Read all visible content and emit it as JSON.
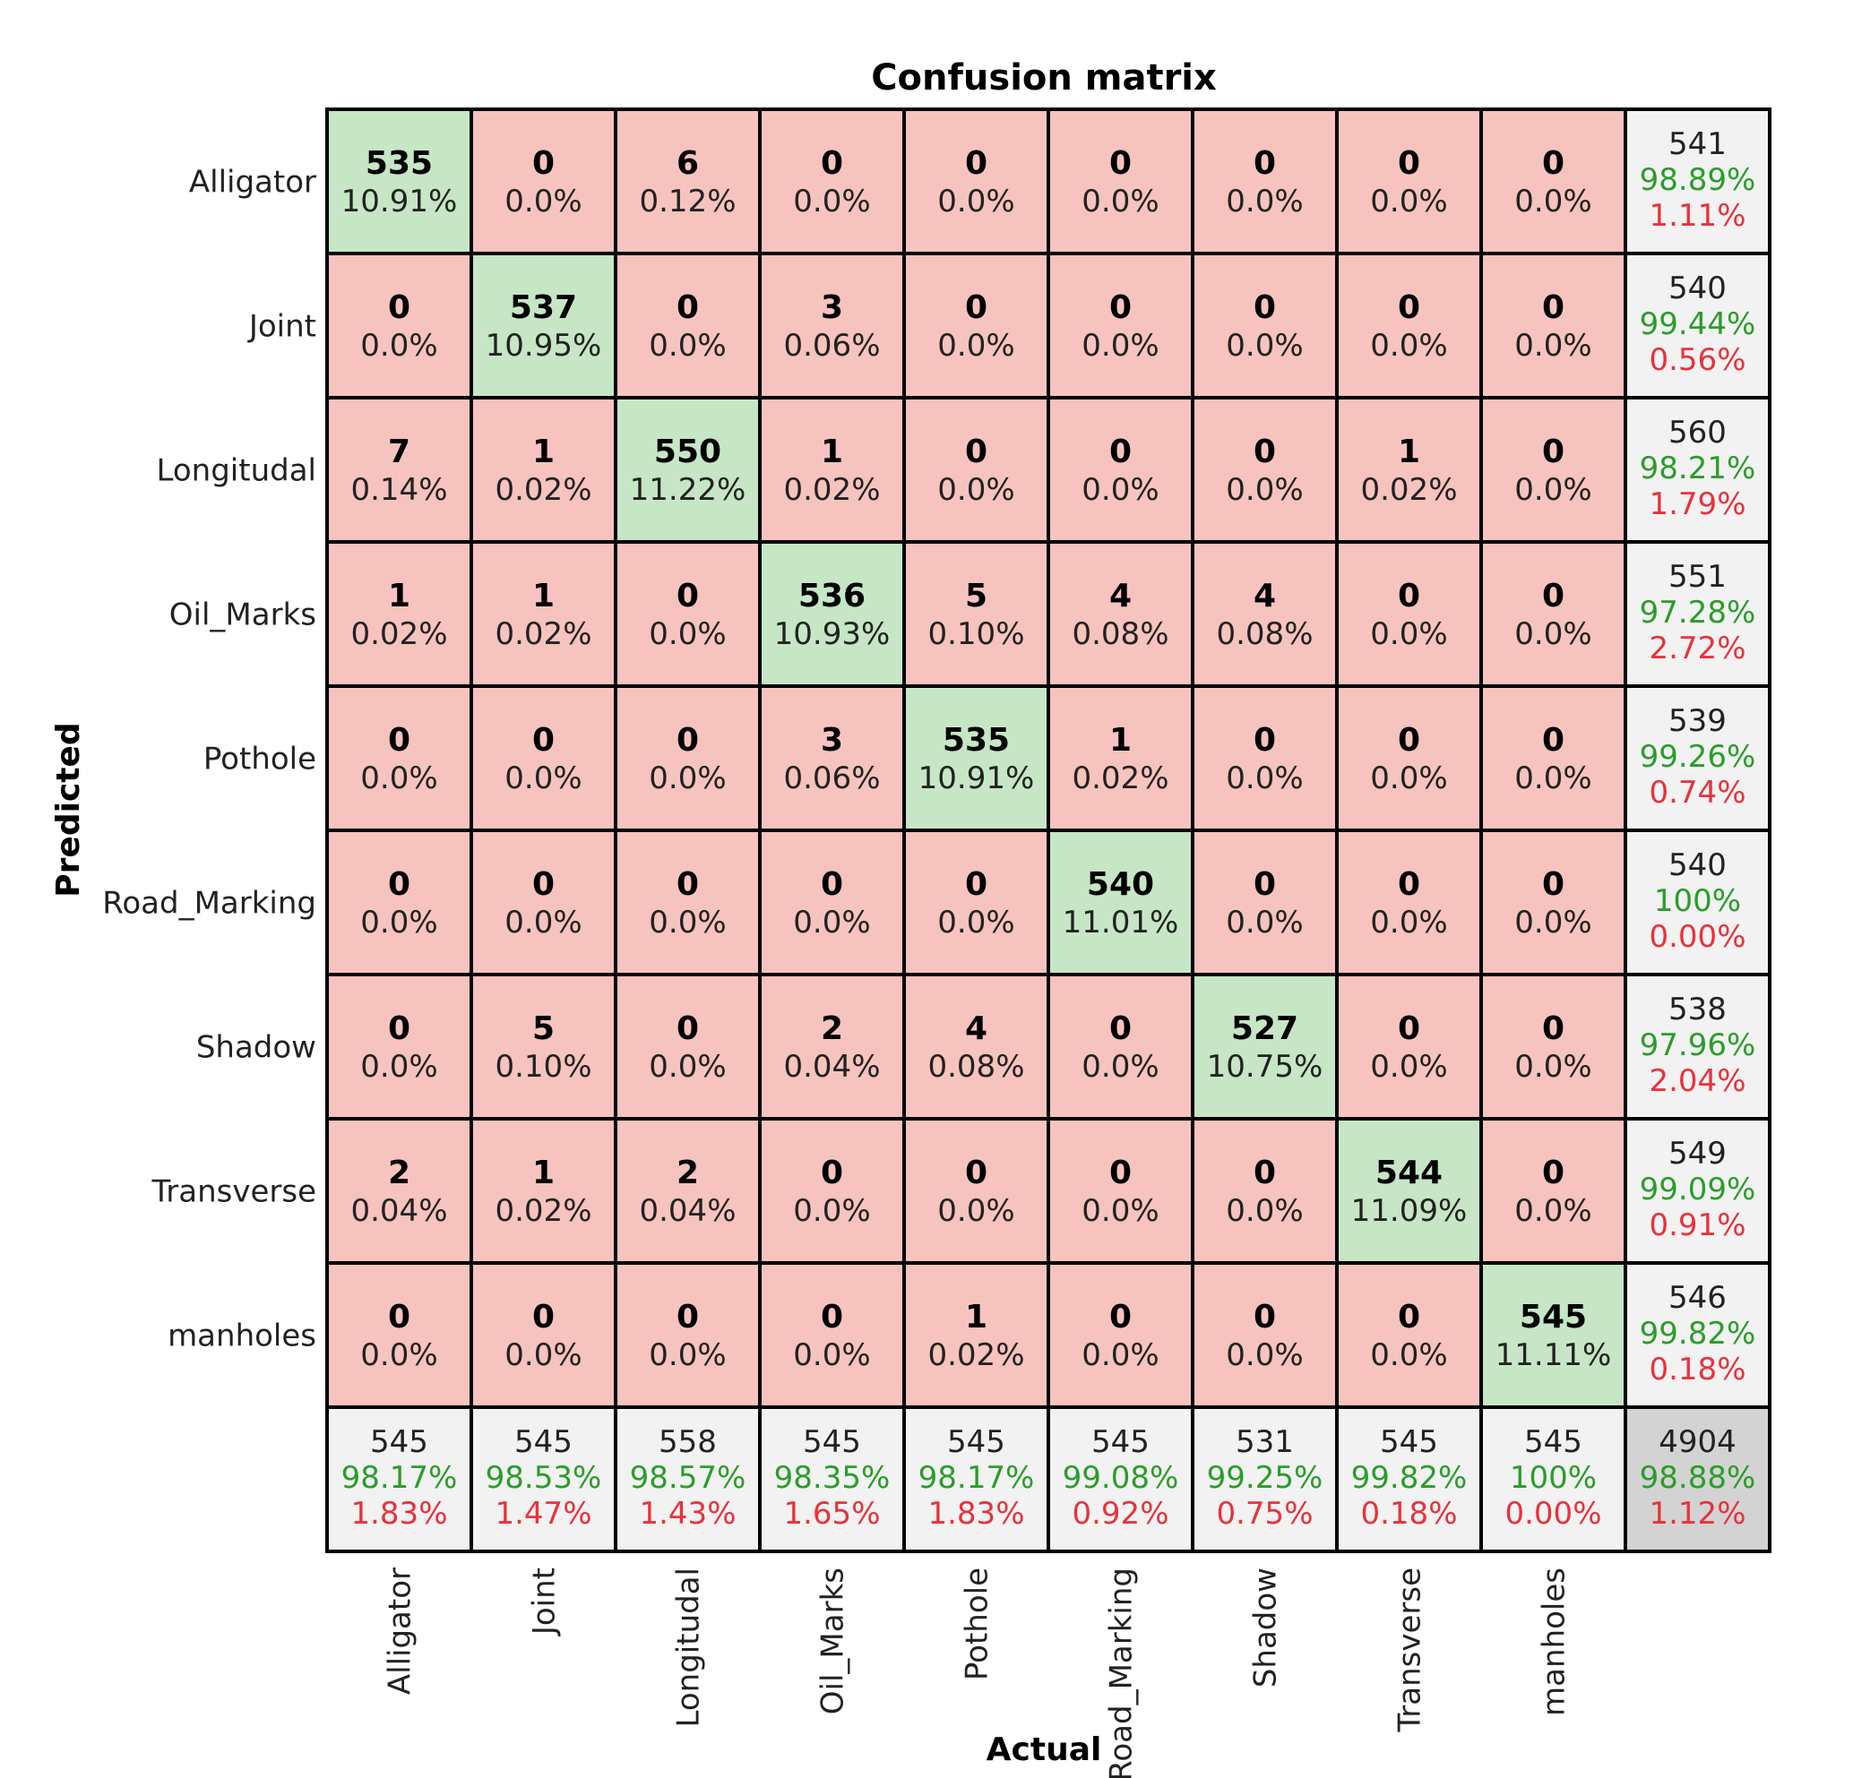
{
  "chart_data": {
    "type": "heatmap",
    "title": "Confusion matrix",
    "xlabel": "Actual",
    "ylabel": "Predicted",
    "labels": [
      "Alligator",
      "Joint",
      "Longitudal",
      "Oil_Marks",
      "Pothole",
      "Road_Marking",
      "Shadow",
      "Transverse",
      "manholes"
    ],
    "cells": [
      [
        {
          "count": "535",
          "pct": "10.91%"
        },
        {
          "count": "0",
          "pct": "0.0%"
        },
        {
          "count": "6",
          "pct": "0.12%"
        },
        {
          "count": "0",
          "pct": "0.0%"
        },
        {
          "count": "0",
          "pct": "0.0%"
        },
        {
          "count": "0",
          "pct": "0.0%"
        },
        {
          "count": "0",
          "pct": "0.0%"
        },
        {
          "count": "0",
          "pct": "0.0%"
        },
        {
          "count": "0",
          "pct": "0.0%"
        }
      ],
      [
        {
          "count": "0",
          "pct": "0.0%"
        },
        {
          "count": "537",
          "pct": "10.95%"
        },
        {
          "count": "0",
          "pct": "0.0%"
        },
        {
          "count": "3",
          "pct": "0.06%"
        },
        {
          "count": "0",
          "pct": "0.0%"
        },
        {
          "count": "0",
          "pct": "0.0%"
        },
        {
          "count": "0",
          "pct": "0.0%"
        },
        {
          "count": "0",
          "pct": "0.0%"
        },
        {
          "count": "0",
          "pct": "0.0%"
        }
      ],
      [
        {
          "count": "7",
          "pct": "0.14%"
        },
        {
          "count": "1",
          "pct": "0.02%"
        },
        {
          "count": "550",
          "pct": "11.22%"
        },
        {
          "count": "1",
          "pct": "0.02%"
        },
        {
          "count": "0",
          "pct": "0.0%"
        },
        {
          "count": "0",
          "pct": "0.0%"
        },
        {
          "count": "0",
          "pct": "0.0%"
        },
        {
          "count": "1",
          "pct": "0.02%"
        },
        {
          "count": "0",
          "pct": "0.0%"
        }
      ],
      [
        {
          "count": "1",
          "pct": "0.02%"
        },
        {
          "count": "1",
          "pct": "0.02%"
        },
        {
          "count": "0",
          "pct": "0.0%"
        },
        {
          "count": "536",
          "pct": "10.93%"
        },
        {
          "count": "5",
          "pct": "0.10%"
        },
        {
          "count": "4",
          "pct": "0.08%"
        },
        {
          "count": "4",
          "pct": "0.08%"
        },
        {
          "count": "0",
          "pct": "0.0%"
        },
        {
          "count": "0",
          "pct": "0.0%"
        }
      ],
      [
        {
          "count": "0",
          "pct": "0.0%"
        },
        {
          "count": "0",
          "pct": "0.0%"
        },
        {
          "count": "0",
          "pct": "0.0%"
        },
        {
          "count": "3",
          "pct": "0.06%"
        },
        {
          "count": "535",
          "pct": "10.91%"
        },
        {
          "count": "1",
          "pct": "0.02%"
        },
        {
          "count": "0",
          "pct": "0.0%"
        },
        {
          "count": "0",
          "pct": "0.0%"
        },
        {
          "count": "0",
          "pct": "0.0%"
        }
      ],
      [
        {
          "count": "0",
          "pct": "0.0%"
        },
        {
          "count": "0",
          "pct": "0.0%"
        },
        {
          "count": "0",
          "pct": "0.0%"
        },
        {
          "count": "0",
          "pct": "0.0%"
        },
        {
          "count": "0",
          "pct": "0.0%"
        },
        {
          "count": "540",
          "pct": "11.01%"
        },
        {
          "count": "0",
          "pct": "0.0%"
        },
        {
          "count": "0",
          "pct": "0.0%"
        },
        {
          "count": "0",
          "pct": "0.0%"
        }
      ],
      [
        {
          "count": "0",
          "pct": "0.0%"
        },
        {
          "count": "5",
          "pct": "0.10%"
        },
        {
          "count": "0",
          "pct": "0.0%"
        },
        {
          "count": "2",
          "pct": "0.04%"
        },
        {
          "count": "4",
          "pct": "0.08%"
        },
        {
          "count": "0",
          "pct": "0.0%"
        },
        {
          "count": "527",
          "pct": "10.75%"
        },
        {
          "count": "0",
          "pct": "0.0%"
        },
        {
          "count": "0",
          "pct": "0.0%"
        }
      ],
      [
        {
          "count": "2",
          "pct": "0.04%"
        },
        {
          "count": "1",
          "pct": "0.02%"
        },
        {
          "count": "2",
          "pct": "0.04%"
        },
        {
          "count": "0",
          "pct": "0.0%"
        },
        {
          "count": "0",
          "pct": "0.0%"
        },
        {
          "count": "0",
          "pct": "0.0%"
        },
        {
          "count": "0",
          "pct": "0.0%"
        },
        {
          "count": "544",
          "pct": "11.09%"
        },
        {
          "count": "0",
          "pct": "0.0%"
        }
      ],
      [
        {
          "count": "0",
          "pct": "0.0%"
        },
        {
          "count": "0",
          "pct": "0.0%"
        },
        {
          "count": "0",
          "pct": "0.0%"
        },
        {
          "count": "0",
          "pct": "0.0%"
        },
        {
          "count": "1",
          "pct": "0.02%"
        },
        {
          "count": "0",
          "pct": "0.0%"
        },
        {
          "count": "0",
          "pct": "0.0%"
        },
        {
          "count": "0",
          "pct": "0.0%"
        },
        {
          "count": "545",
          "pct": "11.11%"
        }
      ]
    ],
    "row_totals": [
      {
        "total": "541",
        "correct": "98.89%",
        "error": "1.11%"
      },
      {
        "total": "540",
        "correct": "99.44%",
        "error": "0.56%"
      },
      {
        "total": "560",
        "correct": "98.21%",
        "error": "1.79%"
      },
      {
        "total": "551",
        "correct": "97.28%",
        "error": "2.72%"
      },
      {
        "total": "539",
        "correct": "99.26%",
        "error": "0.74%"
      },
      {
        "total": "540",
        "correct": "100%",
        "error": "0.00%"
      },
      {
        "total": "538",
        "correct": "97.96%",
        "error": "2.04%"
      },
      {
        "total": "549",
        "correct": "99.09%",
        "error": "0.91%"
      },
      {
        "total": "546",
        "correct": "99.82%",
        "error": "0.18%"
      }
    ],
    "col_totals": [
      {
        "total": "545",
        "correct": "98.17%",
        "error": "1.83%"
      },
      {
        "total": "545",
        "correct": "98.53%",
        "error": "1.47%"
      },
      {
        "total": "558",
        "correct": "98.57%",
        "error": "1.43%"
      },
      {
        "total": "545",
        "correct": "98.35%",
        "error": "1.65%"
      },
      {
        "total": "545",
        "correct": "98.17%",
        "error": "1.83%"
      },
      {
        "total": "545",
        "correct": "99.08%",
        "error": "0.92%"
      },
      {
        "total": "531",
        "correct": "99.25%",
        "error": "0.75%"
      },
      {
        "total": "545",
        "correct": "99.82%",
        "error": "0.18%"
      },
      {
        "total": "545",
        "correct": "100%",
        "error": "0.00%"
      }
    ],
    "overall": {
      "total": "4904",
      "correct": "98.88%",
      "error": "1.12%"
    },
    "colors": {
      "diagonal": "#c6e6c6",
      "off_diagonal": "#f7c3be",
      "summary": "#f2f2f2",
      "overall": "#d3d3d3",
      "correct_text": "#2a9d2a",
      "error_text": "#e8323c",
      "grid_line": "#000000"
    }
  }
}
